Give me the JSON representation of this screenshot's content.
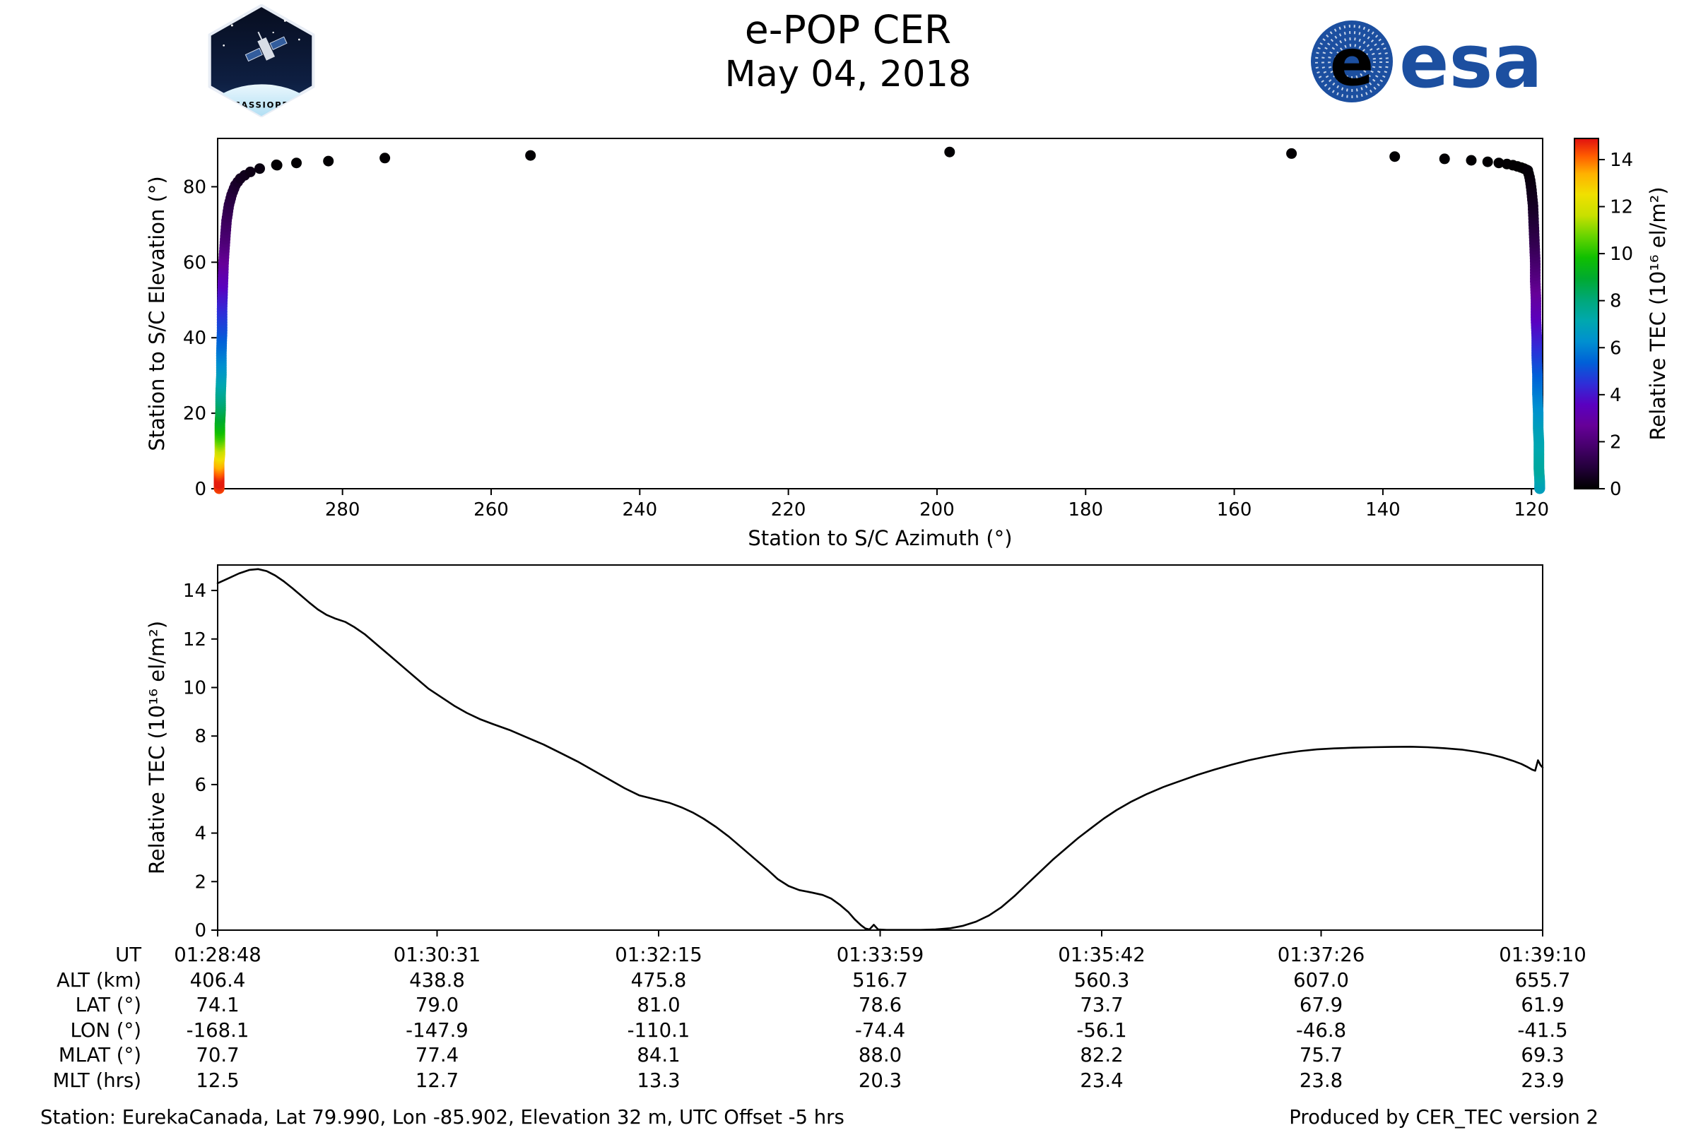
{
  "header": {
    "cassiope_label": "CASSIOPE",
    "title": "e-POP CER",
    "date": "May 04, 2018",
    "esa_wordmark": "esa"
  },
  "chart_data": [
    {
      "type": "scatter",
      "xlabel": "Station to S/C Azimuth (°)",
      "ylabel": "Station to S/C Elevation (°)",
      "xlim": [
        296.8,
        118.5
      ],
      "x_axis_reversed": true,
      "ylim": [
        0,
        92.8
      ],
      "xticks": [
        280,
        260,
        240,
        220,
        200,
        180,
        160,
        140,
        120
      ],
      "yticks": [
        0,
        20,
        40,
        60,
        80
      ],
      "colorbar": {
        "label": "Relative TEC (10¹⁶ el/m²)",
        "ticks": [
          0,
          2,
          4,
          6,
          8,
          10,
          12,
          14
        ],
        "range": [
          0,
          14.9
        ],
        "gradient_stops": [
          [
            0,
            "#000000"
          ],
          [
            0.06,
            "#23003a"
          ],
          [
            0.12,
            "#46006c"
          ],
          [
            0.18,
            "#660098"
          ],
          [
            0.24,
            "#5a00c0"
          ],
          [
            0.3,
            "#2e2ed8"
          ],
          [
            0.36,
            "#0060d8"
          ],
          [
            0.42,
            "#0090d0"
          ],
          [
            0.48,
            "#00a8ae"
          ],
          [
            0.54,
            "#00a878"
          ],
          [
            0.6,
            "#00aa30"
          ],
          [
            0.66,
            "#10c000"
          ],
          [
            0.72,
            "#66d400"
          ],
          [
            0.78,
            "#c8e000"
          ],
          [
            0.84,
            "#f0e000"
          ],
          [
            0.9,
            "#ffb000"
          ],
          [
            0.95,
            "#ff5c00"
          ],
          [
            1,
            "#e01010"
          ]
        ]
      },
      "pass_track": {
        "note": "Satellite pass rises at azimuth ~297°, crosses near zenith (elevation ~89°), sets at azimuth ~119°; points colored by relative TEC",
        "ascending_keyframes_el_az_tec": [
          [
            0,
            296.6,
            14.35
          ],
          [
            1.5,
            296.6,
            14.8
          ],
          [
            3,
            296.6,
            14.75
          ],
          [
            5,
            296.6,
            14.0
          ],
          [
            7,
            296.6,
            13.2
          ],
          [
            9,
            296.5,
            12.4
          ],
          [
            11,
            296.5,
            11.5
          ],
          [
            14,
            296.5,
            10.3
          ],
          [
            17,
            296.5,
            9.4
          ],
          [
            21,
            296.4,
            8.5
          ],
          [
            25,
            296.4,
            7.7
          ],
          [
            30,
            296.3,
            6.8
          ],
          [
            36,
            296.3,
            5.9
          ],
          [
            42,
            296.2,
            5.1
          ],
          [
            48,
            296.2,
            4.4
          ],
          [
            54,
            296.1,
            3.6
          ],
          [
            60,
            296.0,
            2.75
          ],
          [
            66,
            295.8,
            2.0
          ],
          [
            71,
            295.6,
            1.55
          ],
          [
            75,
            295.3,
            1.2
          ],
          [
            78,
            294.9,
            0.95
          ],
          [
            80.5,
            294.4,
            0.7
          ],
          [
            82.3,
            293.7,
            0.5
          ],
          [
            83.7,
            292.7,
            0.35
          ],
          [
            84.7,
            291.4,
            0.25
          ],
          [
            85.3,
            290.0,
            0.15
          ],
          [
            85.7,
            288.8,
            0.1
          ]
        ],
        "zenith_arc_az_el": [
          [
            288.9,
            85.8
          ],
          [
            286.2,
            86.3
          ],
          [
            281.9,
            86.8
          ],
          [
            274.3,
            87.6
          ],
          [
            254.7,
            88.3
          ],
          [
            198.3,
            89.2
          ],
          [
            152.3,
            88.8
          ],
          [
            138.4,
            88.0
          ],
          [
            131.7,
            87.4
          ],
          [
            128.1,
            87.0
          ],
          [
            125.9,
            86.6
          ],
          [
            124.4,
            86.3
          ],
          [
            123.3,
            86.0
          ],
          [
            122.5,
            85.7
          ],
          [
            121.9,
            85.4
          ],
          [
            121.4,
            85.1
          ],
          [
            121.0,
            84.8
          ],
          [
            120.7,
            84.5
          ]
        ],
        "descending_keyframes_el_az_tec": [
          [
            0,
            118.9,
            6.75
          ],
          [
            2,
            118.9,
            7.0
          ],
          [
            5,
            119.0,
            7.4
          ],
          [
            8,
            119.0,
            7.35
          ],
          [
            12,
            119.0,
            7.1
          ],
          [
            16,
            119.1,
            6.9
          ],
          [
            20,
            119.1,
            6.5
          ],
          [
            25,
            119.2,
            6.0
          ],
          [
            30,
            119.2,
            5.45
          ],
          [
            35,
            119.3,
            4.85
          ],
          [
            40,
            119.3,
            4.2
          ],
          [
            45,
            119.4,
            3.6
          ],
          [
            50,
            119.4,
            3.0
          ],
          [
            55,
            119.5,
            2.4
          ],
          [
            60,
            119.5,
            1.85
          ],
          [
            65,
            119.6,
            1.35
          ],
          [
            70,
            119.7,
            0.95
          ],
          [
            75,
            119.8,
            0.6
          ],
          [
            79,
            120.0,
            0.4
          ],
          [
            82,
            120.2,
            0.25
          ],
          [
            84.3,
            120.5,
            0.12
          ]
        ]
      }
    },
    {
      "type": "line",
      "ylabel": "Relative TEC (10¹⁶ el/m²)",
      "ylim": [
        0,
        15.05
      ],
      "yticks": [
        0,
        2,
        4,
        6,
        8,
        10,
        12,
        14
      ],
      "x_range_seconds": [
        0,
        622
      ],
      "x_tick_seconds": [
        0,
        103,
        207,
        311,
        415,
        518,
        622
      ],
      "x_tick_labels_ut": [
        "01:28:48",
        "01:30:31",
        "01:32:15",
        "01:33:59",
        "01:35:42",
        "01:37:26",
        "01:39:10"
      ],
      "points_t_tec": [
        [
          0,
          14.3
        ],
        [
          5,
          14.5
        ],
        [
          10,
          14.7
        ],
        [
          15,
          14.85
        ],
        [
          19,
          14.88
        ],
        [
          23,
          14.8
        ],
        [
          27,
          14.62
        ],
        [
          31,
          14.38
        ],
        [
          35,
          14.1
        ],
        [
          39,
          13.8
        ],
        [
          43,
          13.5
        ],
        [
          47,
          13.22
        ],
        [
          51,
          13.0
        ],
        [
          55,
          12.85
        ],
        [
          60,
          12.7
        ],
        [
          64,
          12.5
        ],
        [
          69,
          12.2
        ],
        [
          75,
          11.75
        ],
        [
          81,
          11.3
        ],
        [
          87,
          10.85
        ],
        [
          93,
          10.4
        ],
        [
          99,
          9.95
        ],
        [
          105,
          9.6
        ],
        [
          111,
          9.25
        ],
        [
          117,
          8.95
        ],
        [
          123,
          8.7
        ],
        [
          129,
          8.5
        ],
        [
          137,
          8.25
        ],
        [
          145,
          7.95
        ],
        [
          153,
          7.65
        ],
        [
          161,
          7.3
        ],
        [
          169,
          6.95
        ],
        [
          177,
          6.55
        ],
        [
          184,
          6.2
        ],
        [
          191,
          5.85
        ],
        [
          198,
          5.55
        ],
        [
          205,
          5.4
        ],
        [
          212,
          5.25
        ],
        [
          218,
          5.05
        ],
        [
          223,
          4.85
        ],
        [
          228,
          4.6
        ],
        [
          234,
          4.25
        ],
        [
          240,
          3.85
        ],
        [
          246,
          3.4
        ],
        [
          252,
          2.95
        ],
        [
          258,
          2.5
        ],
        [
          263,
          2.1
        ],
        [
          268,
          1.82
        ],
        [
          273,
          1.65
        ],
        [
          279,
          1.55
        ],
        [
          284,
          1.45
        ],
        [
          288,
          1.3
        ],
        [
          292,
          1.05
        ],
        [
          296,
          0.75
        ],
        [
          299,
          0.45
        ],
        [
          302,
          0.2
        ],
        [
          304,
          0.07
        ],
        [
          306,
          0.03
        ],
        [
          308,
          0.22
        ],
        [
          310,
          0.03
        ],
        [
          314,
          0.01
        ],
        [
          322,
          0.01
        ],
        [
          330,
          0.01
        ],
        [
          337,
          0.03
        ],
        [
          344,
          0.08
        ],
        [
          350,
          0.18
        ],
        [
          356,
          0.35
        ],
        [
          362,
          0.6
        ],
        [
          368,
          0.95
        ],
        [
          374,
          1.4
        ],
        [
          380,
          1.9
        ],
        [
          386,
          2.4
        ],
        [
          392,
          2.9
        ],
        [
          398,
          3.35
        ],
        [
          404,
          3.8
        ],
        [
          410,
          4.2
        ],
        [
          416,
          4.6
        ],
        [
          422,
          4.95
        ],
        [
          429,
          5.3
        ],
        [
          436,
          5.6
        ],
        [
          444,
          5.9
        ],
        [
          452,
          6.15
        ],
        [
          460,
          6.4
        ],
        [
          468,
          6.62
        ],
        [
          476,
          6.82
        ],
        [
          484,
          7.0
        ],
        [
          492,
          7.15
        ],
        [
          500,
          7.28
        ],
        [
          508,
          7.38
        ],
        [
          516,
          7.45
        ],
        [
          524,
          7.49
        ],
        [
          533,
          7.52
        ],
        [
          542,
          7.54
        ],
        [
          551,
          7.55
        ],
        [
          560,
          7.56
        ],
        [
          568,
          7.54
        ],
        [
          576,
          7.5
        ],
        [
          584,
          7.44
        ],
        [
          591,
          7.35
        ],
        [
          597,
          7.25
        ],
        [
          603,
          7.12
        ],
        [
          608,
          6.98
        ],
        [
          612,
          6.85
        ],
        [
          615,
          6.72
        ],
        [
          617,
          6.62
        ],
        [
          618.5,
          6.57
        ],
        [
          619.8,
          7.0
        ],
        [
          621,
          6.8
        ],
        [
          622,
          6.7
        ]
      ]
    }
  ],
  "ephemeris_table": {
    "row_labels": [
      "UT",
      "ALT (km)",
      "LAT (°)",
      "LON (°)",
      "MLAT (°)",
      "MLT (hrs)"
    ],
    "rows": [
      [
        "01:28:48",
        "01:30:31",
        "01:32:15",
        "01:33:59",
        "01:35:42",
        "01:37:26",
        "01:39:10"
      ],
      [
        "406.4",
        "438.8",
        "475.8",
        "516.7",
        "560.3",
        "607.0",
        "655.7"
      ],
      [
        "74.1",
        "79.0",
        "81.0",
        "78.6",
        "73.7",
        "67.9",
        "61.9"
      ],
      [
        "-168.1",
        "-147.9",
        "-110.1",
        "-74.4",
        "-56.1",
        "-46.8",
        "-41.5"
      ],
      [
        "70.7",
        "77.4",
        "84.1",
        "88.0",
        "82.2",
        "75.7",
        "69.3"
      ],
      [
        "12.5",
        "12.7",
        "13.3",
        "20.3",
        "23.4",
        "23.8",
        "23.9"
      ]
    ]
  },
  "footer": {
    "station_info": "Station: EurekaCanada, Lat 79.990, Lon -85.902, Elevation 32 m, UTC Offset -5 hrs",
    "produced_by": "Produced by CER_TEC version 2"
  },
  "colors": {
    "line": "#000000",
    "esa_blue": "#1c4fa0",
    "patch_space": "#0e1f42"
  }
}
